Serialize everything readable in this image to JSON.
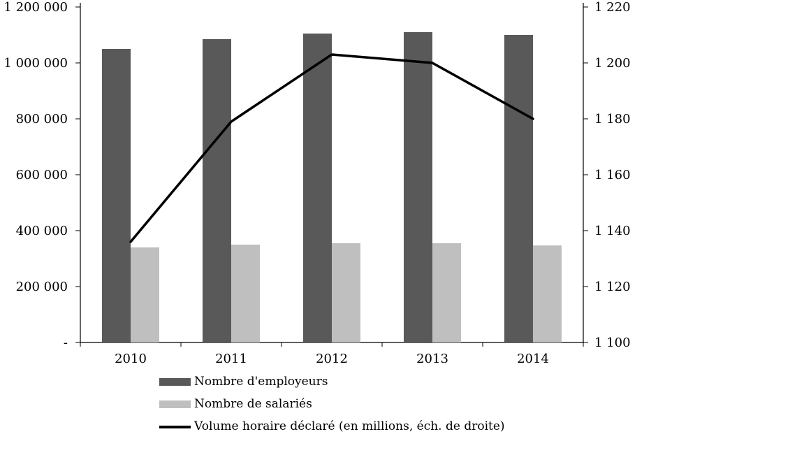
{
  "chart_data": {
    "type": "combo-bar-line",
    "title": "",
    "xlabel": "",
    "ylabel": "",
    "grid": false,
    "legend_position": "bottom-left",
    "categories": [
      "2010",
      "2011",
      "2012",
      "2013",
      "2014"
    ],
    "bar_series": [
      {
        "name": "Nombre d'employeurs",
        "color": "#595959",
        "axis": "left",
        "values": [
          1050000,
          1085000,
          1105000,
          1110000,
          1100000
        ]
      },
      {
        "name": "Nombre de salariés",
        "color": "#bfbfbf",
        "axis": "left",
        "values": [
          340000,
          350000,
          355000,
          355000,
          347000
        ]
      }
    ],
    "line_series": {
      "name": "Volume horaire déclaré (en millions, éch. de droite)",
      "color": "#000000",
      "axis": "right",
      "values": [
        1136,
        1179,
        1203,
        1200,
        1180
      ]
    },
    "left_axis": {
      "min": 0,
      "max": 1200000,
      "step": 200000,
      "tick_labels": [
        "-",
        "200 000",
        "400 000",
        "600 000",
        "800 000",
        "1 000 000",
        "1 200 000"
      ]
    },
    "right_axis": {
      "min": 1100,
      "max": 1220,
      "step": 20,
      "tick_labels": [
        "1 100",
        "1 120",
        "1 140",
        "1 160",
        "1 180",
        "1 200",
        "1 220"
      ]
    }
  }
}
